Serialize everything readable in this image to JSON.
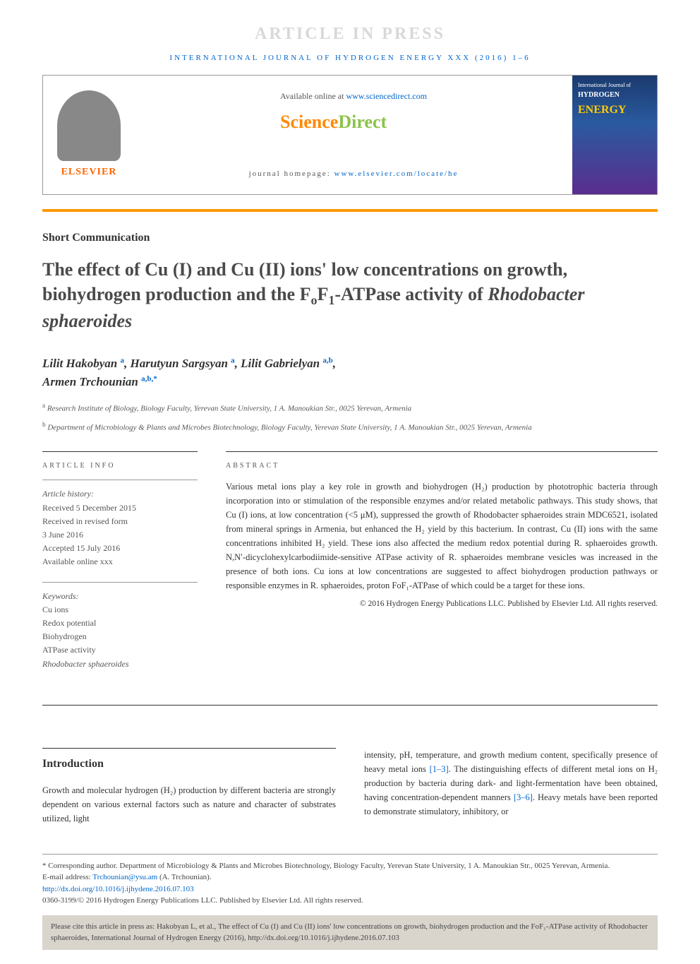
{
  "banner": "ARTICLE IN PRESS",
  "journal_header": "INTERNATIONAL JOURNAL OF HYDROGEN ENERGY XXX (2016) 1–6",
  "header": {
    "elsevier": "ELSEVIER",
    "available_prefix": "Available online at ",
    "available_url": "www.sciencedirect.com",
    "sd_part1": "Science",
    "sd_part2": "Direct",
    "homepage_prefix": "journal homepage: ",
    "homepage_url": "www.elsevier.com/locate/he",
    "cover_line1": "International Journal of",
    "cover_line2": "HYDROGEN",
    "cover_line3": "ENERGY"
  },
  "article_type": "Short Communication",
  "title_parts": {
    "p1": "The effect of Cu (I) and Cu (II) ions' low concentrations on growth, biohydrogen production and the F",
    "sub1": "o",
    "p2": "F",
    "sub2": "1",
    "p3": "-ATPase activity of ",
    "italic": "Rhodobacter sphaeroides"
  },
  "authors": [
    {
      "name": "Lilit Hakobyan",
      "sup": "a"
    },
    {
      "name": "Harutyun Sargsyan",
      "sup": "a"
    },
    {
      "name": "Lilit Gabrielyan",
      "sup": "a,b"
    },
    {
      "name": "Armen Trchounian",
      "sup": "a,b,*"
    }
  ],
  "affiliations": {
    "a": "Research Institute of Biology, Biology Faculty, Yerevan State University, 1 A. Manoukian Str., 0025 Yerevan, Armenia",
    "b": "Department of Microbiology & Plants and Microbes Biotechnology, Biology Faculty, Yerevan State University, 1 A. Manoukian Str., 0025 Yerevan, Armenia"
  },
  "info": {
    "heading": "ARTICLE INFO",
    "history_label": "Article history:",
    "history": [
      "Received 5 December 2015",
      "Received in revised form",
      "3 June 2016",
      "Accepted 15 July 2016",
      "Available online xxx"
    ],
    "keywords_label": "Keywords:",
    "keywords": [
      "Cu ions",
      "Redox potential",
      "Biohydrogen",
      "ATPase activity",
      "Rhodobacter sphaeroides"
    ]
  },
  "abstract": {
    "heading": "ABSTRACT",
    "text": "Various metal ions play a key role in growth and biohydrogen (H₂) production by phototrophic bacteria through incorporation into or stimulation of the responsible enzymes and/or related metabolic pathways. This study shows, that Cu (I) ions, at low concentration (<5 μM), suppressed the growth of Rhodobacter sphaeroides strain MDC6521, isolated from mineral springs in Armenia, but enhanced the H₂ yield by this bacterium. In contrast, Cu (II) ions with the same concentrations inhibited H₂ yield. These ions also affected the medium redox potential during R. sphaeroides growth. N,N′-dicyclohexylcarbodiimide-sensitive ATPase activity of R. sphaeroides membrane vesicles was increased in the presence of both ions. Cu ions at low concentrations are suggested to affect biohydrogen production pathways or responsible enzymes in R. sphaeroides, proton FoF₁-ATPase of which could be a target for these ions.",
    "copyright": "© 2016 Hydrogen Energy Publications LLC. Published by Elsevier Ltd. All rights reserved."
  },
  "intro": {
    "heading": "Introduction",
    "col1": "Growth and molecular hydrogen (H₂) production by different bacteria are strongly dependent on various external factors such as nature and character of substrates utilized, light",
    "col2_p1": "intensity, pH, temperature, and growth medium content, specifically presence of heavy metal ions ",
    "col2_ref1": "[1–3]",
    "col2_p2": ". The distinguishing effects of different metal ions on H₂ production by bacteria during dark- and light-fermentation have been obtained, having concentration-dependent manners ",
    "col2_ref2": "[3–6]",
    "col2_p3": ". Heavy metals have been reported to demonstrate stimulatory, inhibitory, or"
  },
  "footnotes": {
    "corresponding": "* Corresponding author. Department of Microbiology & Plants and Microbes Biotechnology, Biology Faculty, Yerevan State University, 1 A. Manoukian Str., 0025 Yerevan, Armenia.",
    "email_label": "E-mail address: ",
    "email": "Trchounian@ysu.am",
    "email_author": " (A. Trchounian).",
    "doi": "http://dx.doi.org/10.1016/j.ijhydene.2016.07.103",
    "issn": "0360-3199/© 2016 Hydrogen Energy Publications LLC. Published by Elsevier Ltd. All rights reserved."
  },
  "citation_box": "Please cite this article in press as: Hakobyan L, et al., The effect of Cu (I) and Cu (II) ions' low concentrations on growth, biohydrogen production and the FoF₁-ATPase activity of Rhodobacter sphaeroides, International Journal of Hydrogen Energy (2016), http://dx.doi.org/10.1016/j.ijhydene.2016.07.103",
  "colors": {
    "link": "#0066cc",
    "orange": "#ff8800",
    "green": "#8bc34a",
    "elsevier_orange": "#ff6600",
    "banner_gray": "#d8d8d8",
    "text": "#333333",
    "muted": "#555555",
    "citation_bg": "#d9d4cc"
  }
}
